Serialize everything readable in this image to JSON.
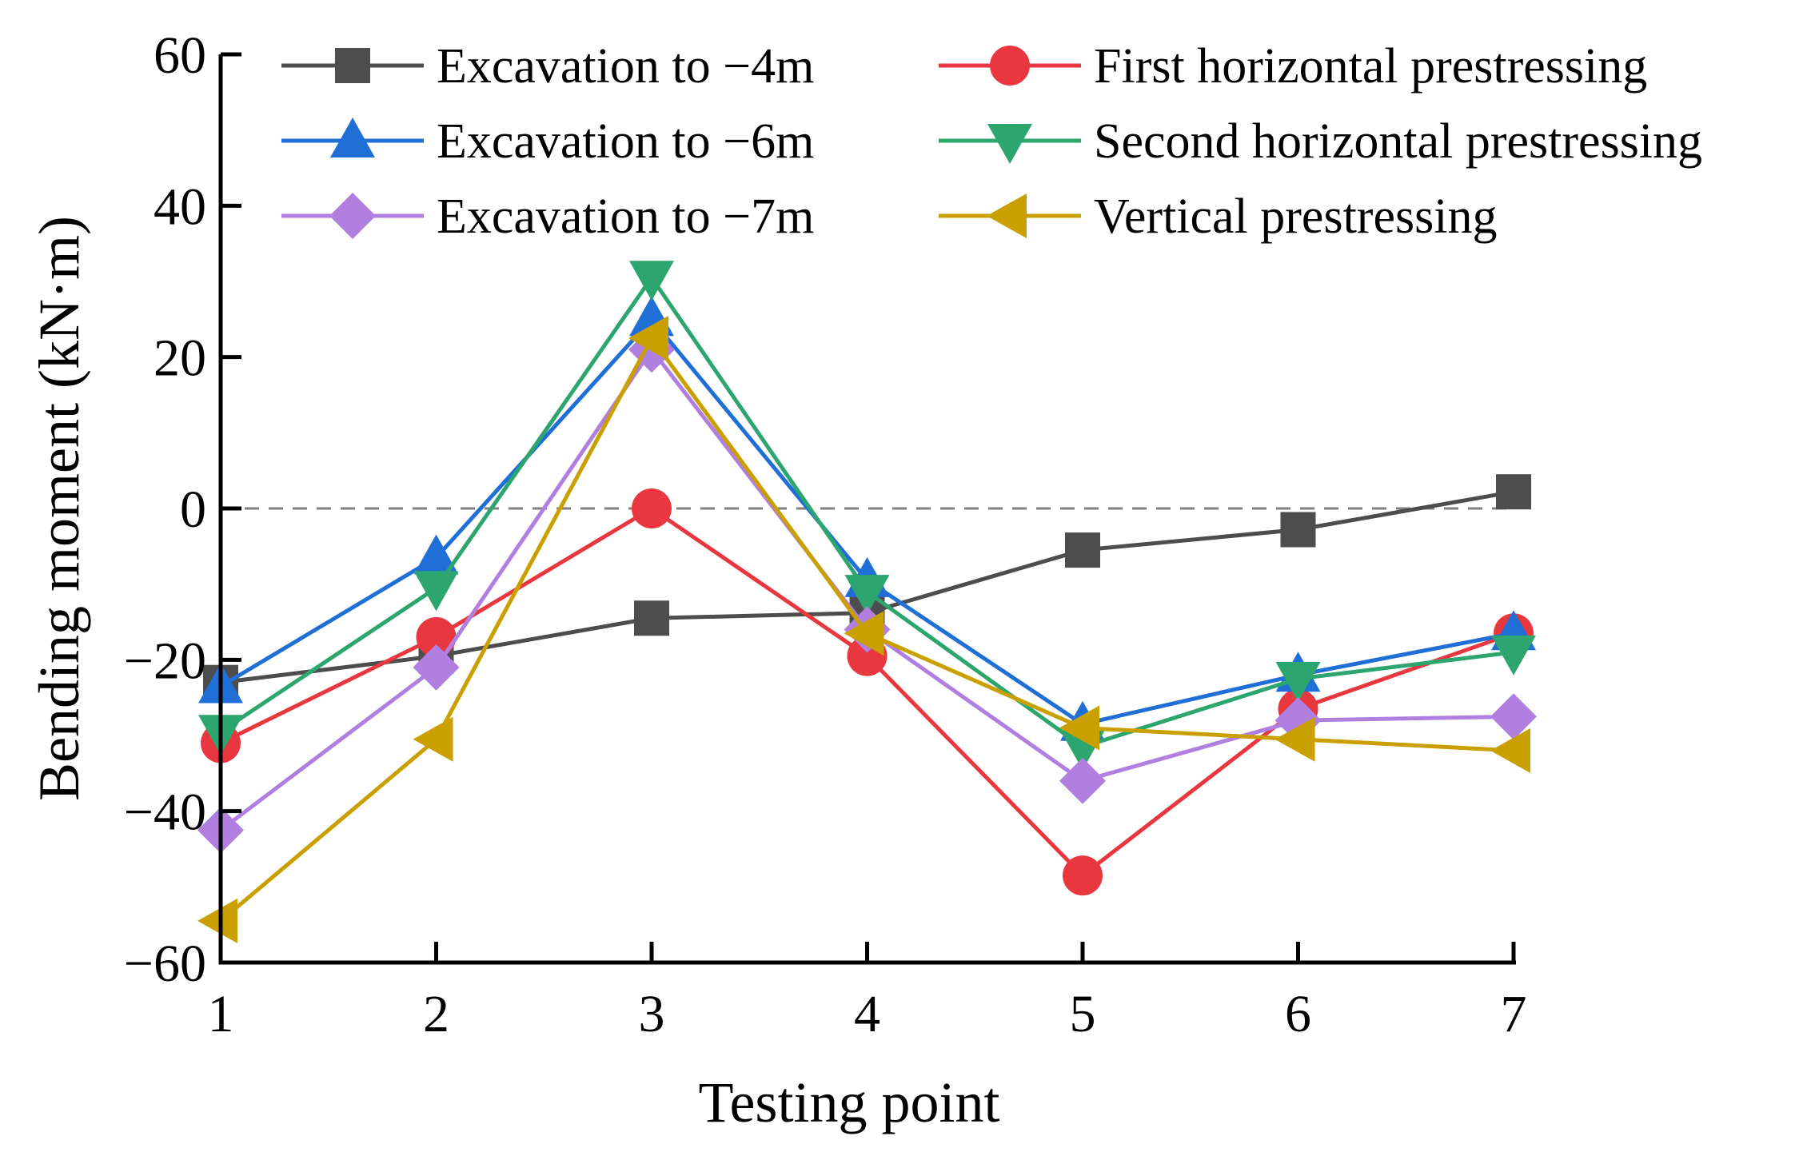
{
  "chart_data": {
    "type": "line",
    "title": "",
    "xlabel": "Testing point",
    "ylabel": "Bending moment (kN·m)",
    "x": [
      1,
      2,
      3,
      4,
      5,
      6,
      7
    ],
    "x_tick_labels": [
      "1",
      "2",
      "3",
      "4",
      "5",
      "6",
      "7"
    ],
    "y_tick_values": [
      -60,
      -40,
      -20,
      0,
      20,
      40,
      60
    ],
    "y_tick_labels": [
      "−60",
      "−40",
      "−20",
      "0",
      "20",
      "40",
      "60"
    ],
    "xlim": [
      1,
      7
    ],
    "ylim": [
      -60,
      60
    ],
    "grid": false,
    "reference_line": {
      "y": 0,
      "style": "dashed"
    },
    "legend_position": "top",
    "series": [
      {
        "name": "Excavation to −4m",
        "marker": "square",
        "color": "#4d4d4d",
        "values": [
          -23,
          -19.5,
          -14.5,
          -13.8,
          -5.5,
          -2.8,
          2.2
        ]
      },
      {
        "name": "First horizontal prestressing",
        "marker": "circle",
        "color": "#e8373e",
        "values": [
          -31,
          -17,
          0,
          -19.5,
          -48.5,
          -26.5,
          -16.5
        ]
      },
      {
        "name": "Excavation to −6m",
        "marker": "triangle-up",
        "color": "#1f6fd6",
        "values": [
          -23.5,
          -6.5,
          25,
          -9.5,
          -28.5,
          -22,
          -16.5
        ]
      },
      {
        "name": "Second horizontal prestressing",
        "marker": "triangle-down",
        "color": "#2ca66e",
        "values": [
          -29.5,
          -10.5,
          30.5,
          -11,
          -31.5,
          -22.5,
          -19
        ]
      },
      {
        "name": "Excavation to −7m",
        "marker": "diamond",
        "color": "#b07fe0",
        "values": [
          -42.5,
          -21,
          21,
          -16,
          -36,
          -28,
          -27.5
        ]
      },
      {
        "name": "Vertical prestressing",
        "marker": "triangle-left",
        "color": "#c9a000",
        "values": [
          -54.5,
          -30.5,
          22.5,
          -16.5,
          -29,
          -30.5,
          -32
        ]
      }
    ]
  }
}
